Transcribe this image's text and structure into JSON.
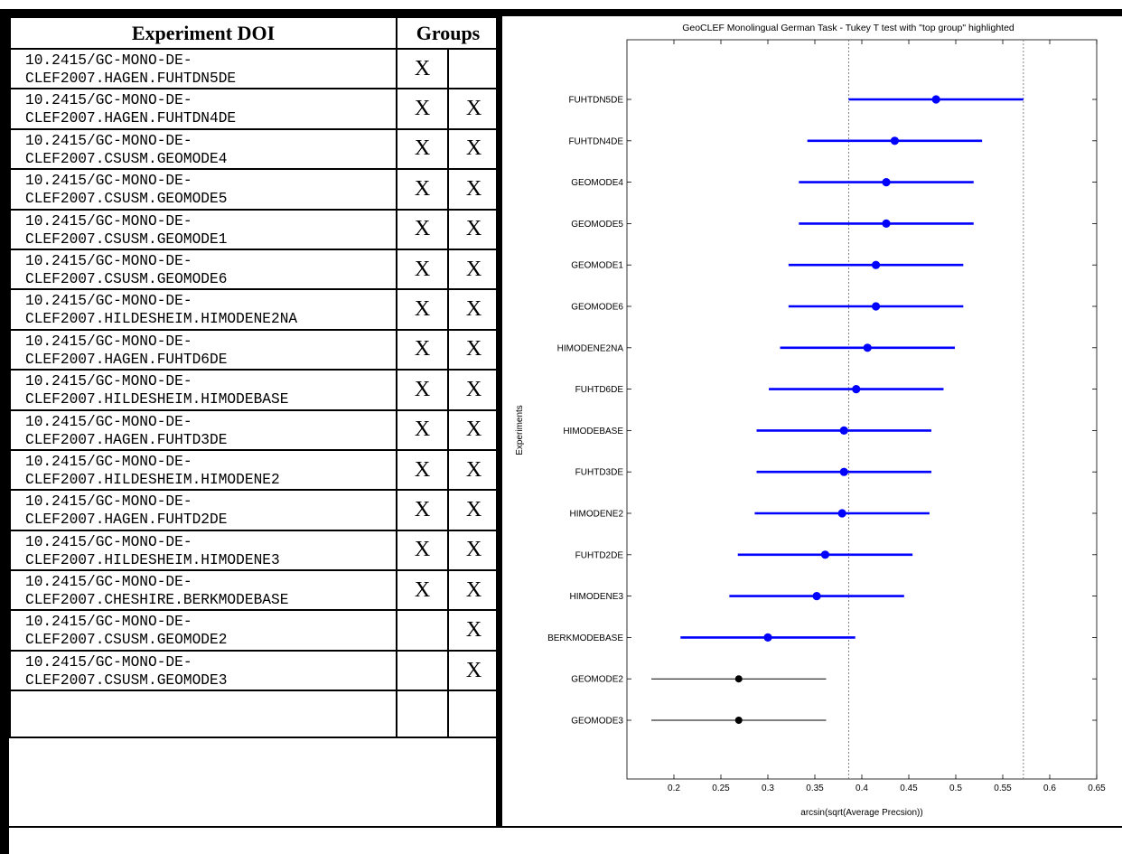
{
  "table": {
    "headers": {
      "doi": "Experiment DOI",
      "groups": "Groups"
    },
    "rows": [
      {
        "doi_line1": "10.2415/GC-MONO-DE-",
        "doi_line2": "CLEF2007.HAGEN.FUHTDN5DE",
        "g1": "X",
        "g2": ""
      },
      {
        "doi_line1": "10.2415/GC-MONO-DE-",
        "doi_line2": "CLEF2007.HAGEN.FUHTDN4DE",
        "g1": "X",
        "g2": "X"
      },
      {
        "doi_line1": "10.2415/GC-MONO-DE-",
        "doi_line2": "CLEF2007.CSUSM.GEOMODE4",
        "g1": "X",
        "g2": "X"
      },
      {
        "doi_line1": "10.2415/GC-MONO-DE-",
        "doi_line2": "CLEF2007.CSUSM.GEOMODE5",
        "g1": "X",
        "g2": "X"
      },
      {
        "doi_line1": "10.2415/GC-MONO-DE-",
        "doi_line2": "CLEF2007.CSUSM.GEOMODE1",
        "g1": "X",
        "g2": "X"
      },
      {
        "doi_line1": "10.2415/GC-MONO-DE-",
        "doi_line2": "CLEF2007.CSUSM.GEOMODE6",
        "g1": "X",
        "g2": "X"
      },
      {
        "doi_line1": "10.2415/GC-MONO-DE-",
        "doi_line2": "CLEF2007.HILDESHEIM.HIMODENE2NA",
        "g1": "X",
        "g2": "X"
      },
      {
        "doi_line1": "10.2415/GC-MONO-DE-",
        "doi_line2": "CLEF2007.HAGEN.FUHTD6DE",
        "g1": "X",
        "g2": "X"
      },
      {
        "doi_line1": "10.2415/GC-MONO-DE-",
        "doi_line2": "CLEF2007.HILDESHEIM.HIMODEBASE",
        "g1": "X",
        "g2": "X"
      },
      {
        "doi_line1": "10.2415/GC-MONO-DE-",
        "doi_line2": "CLEF2007.HAGEN.FUHTD3DE",
        "g1": "X",
        "g2": "X"
      },
      {
        "doi_line1": "10.2415/GC-MONO-DE-",
        "doi_line2": "CLEF2007.HILDESHEIM.HIMODENE2",
        "g1": "X",
        "g2": "X"
      },
      {
        "doi_line1": "10.2415/GC-MONO-DE-",
        "doi_line2": "CLEF2007.HAGEN.FUHTD2DE",
        "g1": "X",
        "g2": "X"
      },
      {
        "doi_line1": "10.2415/GC-MONO-DE-",
        "doi_line2": "CLEF2007.HILDESHEIM.HIMODENE3",
        "g1": "X",
        "g2": "X"
      },
      {
        "doi_line1": "10.2415/GC-MONO-DE-",
        "doi_line2": "CLEF2007.CHESHIRE.BERKMODEBASE",
        "g1": "X",
        "g2": "X"
      },
      {
        "doi_line1": "10.2415/GC-MONO-DE-",
        "doi_line2": "CLEF2007.CSUSM.GEOMODE2",
        "g1": "",
        "g2": "X"
      },
      {
        "doi_line1": "10.2415/GC-MONO-DE-",
        "doi_line2": "CLEF2007.CSUSM.GEOMODE3",
        "g1": "",
        "g2": "X"
      },
      {
        "doi_line1": "",
        "doi_line2": "",
        "g1": "",
        "g2": ""
      }
    ]
  },
  "chart_data": {
    "type": "scatter",
    "title": "GeoCLEF Monolingual German Task - Tukey T test with \"top group\" highlighted",
    "xlabel": "arcsin(sqrt(Average Precsion))",
    "ylabel": "Experiments",
    "xlim": [
      0.15,
      0.65
    ],
    "xticks": [
      0.2,
      0.25,
      0.3,
      0.35,
      0.4,
      0.45,
      0.5,
      0.55,
      0.6,
      0.65
    ],
    "reference_lines": [
      0.386,
      0.572
    ],
    "colors": {
      "top_group": "#0000ff",
      "other": "#000000"
    },
    "series": [
      {
        "label": "FUHTDN5DE",
        "mean": 0.479,
        "low": 0.386,
        "high": 0.572,
        "top_group": true
      },
      {
        "label": "FUHTDN4DE",
        "mean": 0.435,
        "low": 0.342,
        "high": 0.528,
        "top_group": true
      },
      {
        "label": "GEOMODE4",
        "mean": 0.426,
        "low": 0.333,
        "high": 0.519,
        "top_group": true
      },
      {
        "label": "GEOMODE5",
        "mean": 0.426,
        "low": 0.333,
        "high": 0.519,
        "top_group": true
      },
      {
        "label": "GEOMODE1",
        "mean": 0.415,
        "low": 0.322,
        "high": 0.508,
        "top_group": true
      },
      {
        "label": "GEOMODE6",
        "mean": 0.415,
        "low": 0.322,
        "high": 0.508,
        "top_group": true
      },
      {
        "label": "HIMODENE2NA",
        "mean": 0.406,
        "low": 0.313,
        "high": 0.499,
        "top_group": true
      },
      {
        "label": "FUHTD6DE",
        "mean": 0.394,
        "low": 0.301,
        "high": 0.487,
        "top_group": true
      },
      {
        "label": "HIMODEBASE",
        "mean": 0.381,
        "low": 0.288,
        "high": 0.474,
        "top_group": true
      },
      {
        "label": "FUHTD3DE",
        "mean": 0.381,
        "low": 0.288,
        "high": 0.474,
        "top_group": true
      },
      {
        "label": "HIMODENE2",
        "mean": 0.379,
        "low": 0.286,
        "high": 0.472,
        "top_group": true
      },
      {
        "label": "FUHTD2DE",
        "mean": 0.361,
        "low": 0.268,
        "high": 0.454,
        "top_group": true
      },
      {
        "label": "HIMODENE3",
        "mean": 0.352,
        "low": 0.259,
        "high": 0.445,
        "top_group": true
      },
      {
        "label": "BERKMODEBASE",
        "mean": 0.3,
        "low": 0.207,
        "high": 0.393,
        "top_group": true
      },
      {
        "label": "GEOMODE2",
        "mean": 0.269,
        "low": 0.176,
        "high": 0.362,
        "top_group": false
      },
      {
        "label": "GEOMODE3",
        "mean": 0.269,
        "low": 0.176,
        "high": 0.362,
        "top_group": false
      }
    ]
  }
}
